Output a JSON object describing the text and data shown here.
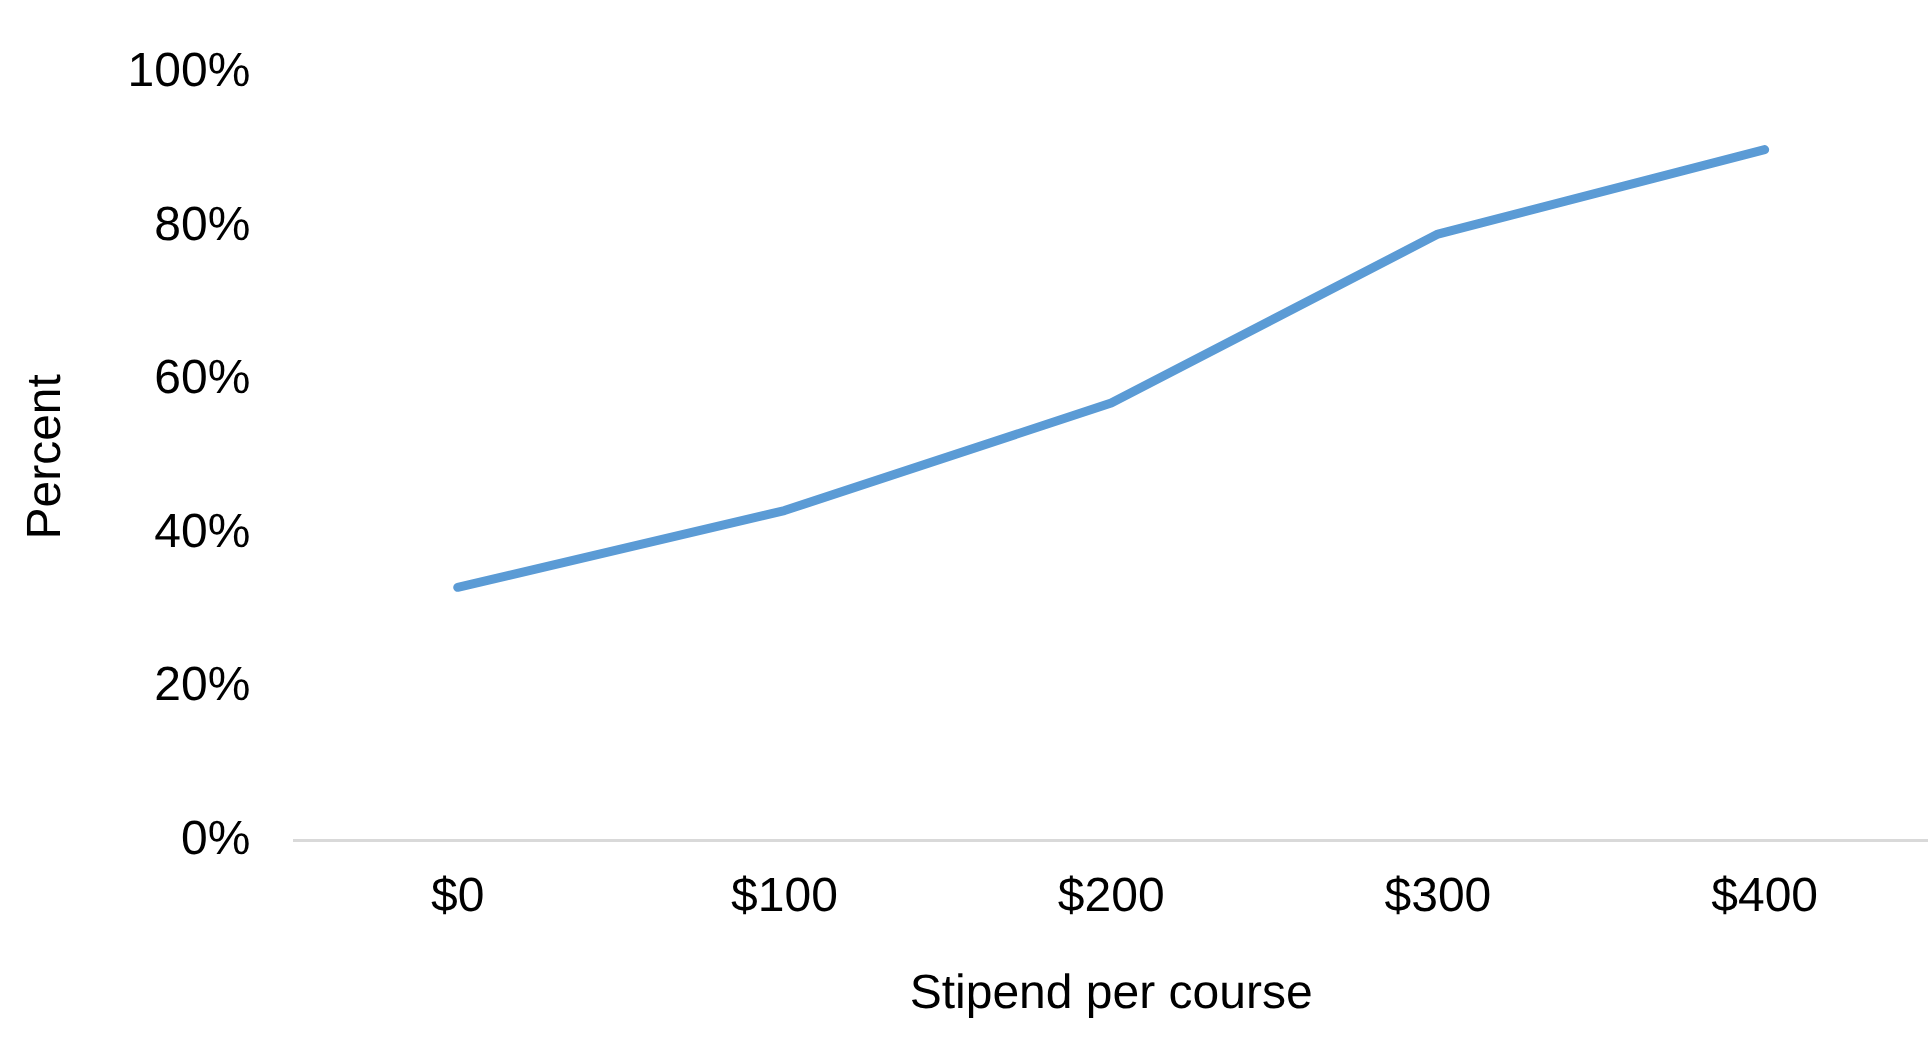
{
  "chart_data": {
    "type": "line",
    "xlabel": "Stipend per course",
    "ylabel": "Percent",
    "categories": [
      "$0",
      "$100",
      "$200",
      "$300",
      "$400"
    ],
    "series": [
      {
        "color": "#5b9bd5",
        "values": [
          33,
          43,
          57,
          79,
          90
        ]
      }
    ],
    "ylim": [
      0,
      100
    ],
    "yticks": [
      {
        "value": 0,
        "label": "0%"
      },
      {
        "value": 20,
        "label": "20%"
      },
      {
        "value": 40,
        "label": "40%"
      },
      {
        "value": 60,
        "label": "60%"
      },
      {
        "value": 80,
        "label": "80%"
      },
      {
        "value": 100,
        "label": "100%"
      }
    ],
    "grid": false,
    "legend": false,
    "marker": "none",
    "line_style": "solid"
  }
}
